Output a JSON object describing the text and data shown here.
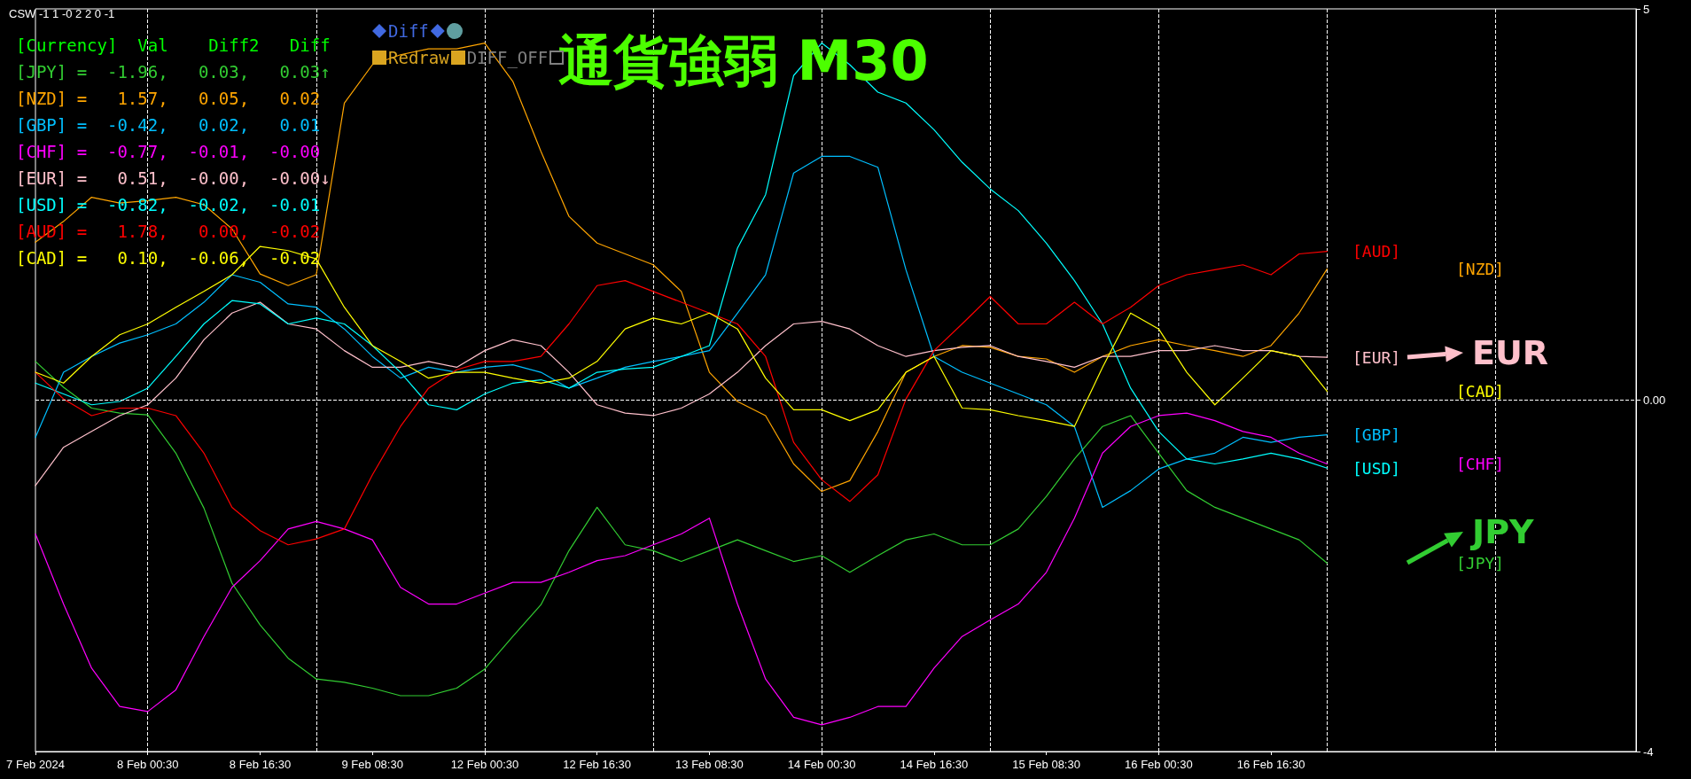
{
  "chart_data": {
    "type": "line",
    "title": "通貨強弱 M30",
    "categories": [
      "7 Feb 2024",
      null,
      null,
      null,
      "8 Feb 00:30",
      null,
      null,
      null,
      "8 Feb 16:30",
      null,
      null,
      null,
      "9 Feb 08:30",
      null,
      null,
      null,
      "12 Feb 00:30",
      null,
      null,
      null,
      "12 Feb 16:30",
      null,
      null,
      null,
      "13 Feb 08:30",
      null,
      null,
      null,
      "14 Feb 00:30",
      null,
      null,
      null,
      "14 Feb 16:30",
      null,
      null,
      null,
      "15 Feb 08:30",
      null,
      null,
      null,
      "16 Feb 00:30",
      null,
      null,
      null,
      "16 Feb 16:30",
      null,
      null,
      null,
      null,
      null,
      null,
      null,
      null,
      null,
      null,
      null,
      null,
      null
    ],
    "ylim": [
      -4.22,
      4.69
    ],
    "yticks": [
      {
        "value": 4.69,
        "label": "5"
      },
      {
        "value": 0,
        "label": "0.00"
      },
      {
        "value": -4.22,
        "label": "-4"
      }
    ],
    "marker": "none",
    "line_style": "solid",
    "grid": "x",
    "legend": "right",
    "series": [
      {
        "name": "[JPY]",
        "color": "#32cd32",
        "values": [
          0.46,
          0.15,
          -0.1,
          -0.16,
          -0.18,
          -0.64,
          -1.3,
          -2.2,
          -2.7,
          -3.1,
          -3.35,
          -3.39,
          -3.46,
          -3.55,
          -3.55,
          -3.46,
          -3.23,
          -2.84,
          -2.46,
          -1.81,
          -1.29,
          -1.74,
          -1.81,
          -1.94,
          -1.81,
          -1.68,
          -1.81,
          -1.94,
          -1.87,
          -2.07,
          -1.87,
          -1.68,
          -1.61,
          -1.74,
          -1.74,
          -1.55,
          -1.16,
          -0.71,
          -0.32,
          -0.19,
          -0.64,
          -1.09,
          -1.29,
          -1.42,
          -1.55,
          -1.68,
          -1.96,
          null,
          null,
          null,
          null,
          null,
          null,
          null,
          null,
          null,
          null,
          null
        ]
      },
      {
        "name": "[NZD]",
        "color": "#ffa500",
        "values": [
          1.89,
          2.14,
          2.43,
          2.36,
          2.39,
          2.43,
          2.34,
          2.05,
          1.51,
          1.37,
          1.5,
          3.56,
          4.02,
          4.14,
          4.21,
          4.21,
          4.28,
          3.82,
          2.98,
          2.2,
          1.88,
          1.75,
          1.62,
          1.3,
          0.33,
          -0.02,
          -0.19,
          -0.77,
          -1.1,
          -0.97,
          -0.38,
          0.33,
          0.52,
          0.65,
          0.63,
          0.52,
          0.49,
          0.33,
          0.52,
          0.65,
          0.72,
          0.65,
          0.59,
          0.52,
          0.65,
          1.04,
          1.57,
          null,
          null,
          null,
          null,
          null,
          null,
          null,
          null,
          null,
          null,
          null
        ]
      },
      {
        "name": "[GBP]",
        "color": "#00bfff",
        "values": [
          -0.45,
          0.33,
          0.52,
          0.68,
          0.78,
          0.91,
          1.17,
          1.5,
          1.41,
          1.15,
          1.11,
          0.85,
          0.52,
          0.26,
          0.39,
          0.33,
          0.39,
          0.42,
          0.33,
          0.14,
          0.26,
          0.39,
          0.46,
          0.52,
          0.59,
          1.04,
          1.5,
          2.72,
          2.92,
          2.92,
          2.79,
          1.56,
          0.52,
          0.33,
          0.2,
          0.07,
          -0.06,
          -0.32,
          -1.29,
          -1.09,
          -0.83,
          -0.71,
          -0.64,
          -0.45,
          -0.51,
          -0.45,
          -0.42,
          null,
          null,
          null,
          null,
          null,
          null,
          null,
          null,
          null,
          null,
          null
        ]
      },
      {
        "name": "[CHF]",
        "color": "#ff00ff",
        "values": [
          -1.61,
          -2.45,
          -3.22,
          -3.68,
          -3.74,
          -3.48,
          -2.84,
          -2.25,
          -1.93,
          -1.55,
          -1.46,
          -1.55,
          -1.68,
          -2.25,
          -2.45,
          -2.45,
          -2.32,
          -2.19,
          -2.19,
          -2.07,
          -1.93,
          -1.87,
          -1.74,
          -1.61,
          -1.42,
          -2.45,
          -3.35,
          -3.81,
          -3.9,
          -3.81,
          -3.68,
          -3.68,
          -3.22,
          -2.84,
          -2.64,
          -2.45,
          -2.07,
          -1.42,
          -0.64,
          -0.32,
          -0.19,
          -0.16,
          -0.25,
          -0.38,
          -0.45,
          -0.64,
          -0.77,
          null,
          null,
          null,
          null,
          null,
          null,
          null,
          null,
          null,
          null,
          null
        ]
      },
      {
        "name": "[EUR]",
        "color": "#ffc0cb",
        "values": [
          -1.03,
          -0.57,
          -0.38,
          -0.19,
          -0.06,
          0.26,
          0.72,
          1.04,
          1.17,
          0.91,
          0.85,
          0.59,
          0.39,
          0.39,
          0.46,
          0.39,
          0.59,
          0.72,
          0.65,
          0.33,
          -0.06,
          -0.16,
          -0.19,
          -0.1,
          0.07,
          0.33,
          0.65,
          0.91,
          0.94,
          0.85,
          0.65,
          0.52,
          0.59,
          0.63,
          0.65,
          0.52,
          0.46,
          0.39,
          0.52,
          0.52,
          0.59,
          0.59,
          0.65,
          0.59,
          0.59,
          0.52,
          0.51,
          null,
          null,
          null,
          null,
          null,
          null,
          null,
          null,
          null,
          null,
          null
        ]
      },
      {
        "name": "[USD]",
        "color": "#00ffff",
        "values": [
          0.2,
          0.07,
          -0.06,
          -0.02,
          0.14,
          0.52,
          0.91,
          1.19,
          1.15,
          0.91,
          0.98,
          0.91,
          0.65,
          0.33,
          -0.06,
          -0.12,
          0.07,
          0.2,
          0.24,
          0.14,
          0.33,
          0.37,
          0.39,
          0.52,
          0.65,
          1.82,
          2.46,
          3.89,
          4.28,
          4.02,
          3.69,
          3.56,
          3.24,
          2.85,
          2.53,
          2.27,
          1.88,
          1.43,
          0.91,
          0.14,
          -0.38,
          -0.71,
          -0.77,
          -0.71,
          -0.64,
          -0.71,
          -0.82,
          null,
          null,
          null,
          null,
          null,
          null,
          null,
          null,
          null,
          null,
          null
        ]
      },
      {
        "name": "[AUD]",
        "color": "#ff0000",
        "values": [
          0.33,
          0.01,
          -0.19,
          -0.1,
          -0.1,
          -0.19,
          -0.64,
          -1.29,
          -1.57,
          -1.74,
          -1.67,
          -1.55,
          -0.9,
          -0.32,
          0.14,
          0.36,
          0.46,
          0.46,
          0.52,
          0.91,
          1.37,
          1.43,
          1.3,
          1.17,
          1.04,
          0.91,
          0.52,
          -0.51,
          -0.96,
          -1.22,
          -0.9,
          0.01,
          0.59,
          0.91,
          1.24,
          0.91,
          0.91,
          1.17,
          0.91,
          1.11,
          1.37,
          1.5,
          1.56,
          1.62,
          1.5,
          1.75,
          1.78,
          null,
          null,
          null,
          null,
          null,
          null,
          null,
          null,
          null,
          null,
          null
        ]
      },
      {
        "name": "[CAD]",
        "color": "#ffff00",
        "values": [
          0.33,
          0.2,
          0.52,
          0.78,
          0.91,
          1.11,
          1.3,
          1.5,
          1.84,
          1.79,
          1.69,
          1.11,
          0.65,
          0.46,
          0.26,
          0.33,
          0.33,
          0.26,
          0.2,
          0.26,
          0.46,
          0.85,
          0.98,
          0.91,
          1.04,
          0.85,
          0.26,
          -0.12,
          -0.12,
          -0.25,
          -0.12,
          0.33,
          0.52,
          -0.1,
          -0.12,
          -0.19,
          -0.25,
          -0.32,
          0.39,
          1.04,
          0.85,
          0.33,
          -0.06,
          0.26,
          0.59,
          0.52,
          0.1,
          null,
          null,
          null,
          null,
          null,
          null,
          null,
          null,
          null,
          null,
          null
        ]
      }
    ],
    "ref_lines": [
      {
        "axis": "y",
        "value": 0,
        "label": null,
        "color": "#ffffff",
        "line_style": "dashed"
      }
    ],
    "annotations": [
      "CSW -1 1 -0 2 2 0 -1",
      "Diff",
      "Redraw",
      "DIFF_OFF",
      "[Currency]  Val    Diff2   Diff",
      "[JPY] =  -1.96,   0.03,   0.03↑",
      "[NZD] =   1.57,   0.05,   0.02",
      "[GBP] =  -0.42,   0.02,   0.01",
      "[CHF] =  -0.77,  -0.01,  -0.00",
      "[EUR] =   0.51,  -0.00,  -0.00↓",
      "[USD] =  -0.82,  -0.02,  -0.01",
      "[AUD] =   1.78,   0.00,  -0.02",
      "[CAD] =   0.10,  -0.06,  -0.02",
      "EUR",
      "JPY"
    ]
  }
}
